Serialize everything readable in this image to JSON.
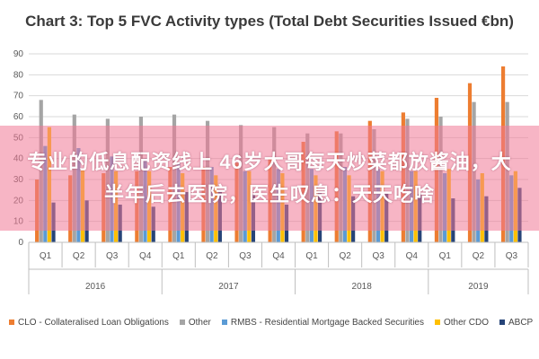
{
  "chart_data": {
    "type": "bar",
    "title": "Chart 3: Top 5 FVC Activity types (Total Debt Securities Issued €bn)",
    "ylim": [
      0,
      90
    ],
    "yticks": [
      0,
      10,
      20,
      30,
      40,
      50,
      60,
      70,
      80,
      90
    ],
    "grid": true,
    "legend_position": "bottom",
    "categories": [
      "Q1",
      "Q2",
      "Q3",
      "Q4",
      "Q1",
      "Q2",
      "Q3",
      "Q4",
      "Q1",
      "Q2",
      "Q3",
      "Q4",
      "Q1",
      "Q2",
      "Q3"
    ],
    "years": [
      {
        "label": "2016",
        "quarters": 4
      },
      {
        "label": "2017",
        "quarters": 4
      },
      {
        "label": "2018",
        "quarters": 4
      },
      {
        "label": "2019",
        "quarters": 3
      }
    ],
    "series": [
      {
        "name": "CLO - Collateralised Loan Obligations",
        "color": "#ed7d31",
        "values": [
          30,
          32,
          33,
          34,
          36,
          36,
          38,
          40,
          48,
          53,
          58,
          62,
          69,
          76,
          84
        ]
      },
      {
        "name": "Other",
        "color": "#a5a5a5",
        "values": [
          68,
          61,
          59,
          60,
          61,
          58,
          56,
          55,
          52,
          52,
          54,
          59,
          60,
          67,
          67
        ]
      },
      {
        "name": "RMBS - Residential Mortgage Backed Securities",
        "color": "#5b9bd5",
        "values": [
          46,
          45,
          41,
          40,
          38,
          36,
          34,
          35,
          35,
          36,
          35,
          34,
          33,
          30,
          32
        ]
      },
      {
        "name": "Other CDO",
        "color": "#ffc000",
        "values": [
          55,
          35,
          34,
          34,
          33,
          32,
          34,
          33,
          32,
          32,
          34,
          34,
          35,
          33,
          34
        ]
      },
      {
        "name": "ABCP",
        "color": "#264478",
        "values": [
          19,
          20,
          18,
          17,
          24,
          25,
          23,
          18,
          24,
          22,
          24,
          23,
          21,
          22,
          26
        ]
      }
    ]
  },
  "overlay": {
    "text": "专业的低息配资线上 46岁大哥每天炒菜都放酱油，大半年后去医院，医生叹息：天天吃啥"
  }
}
